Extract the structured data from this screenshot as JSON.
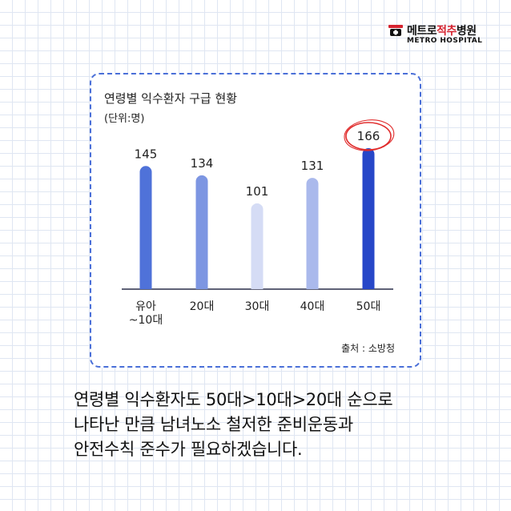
{
  "logo": {
    "name_part1": "메트로",
    "name_part2": "적추",
    "name_part3": "병원",
    "english": "METRO HOSPITAL"
  },
  "chart_data": {
    "type": "bar",
    "title": "연령별 익수환자 구급 현황",
    "unit": "(단위:명)",
    "categories": [
      "유아\n~10대",
      "20대",
      "30대",
      "40대",
      "50대"
    ],
    "values": [
      145,
      134,
      101,
      131,
      166
    ],
    "bar_colors": [
      "#4f72d9",
      "#7d96e2",
      "#d5dcf5",
      "#aab9ec",
      "#2747c8"
    ],
    "highlight_index": 4,
    "highlight_color": "#e02b2b",
    "ylim": [
      0,
      170
    ],
    "grid": false,
    "legend": "none",
    "source": "출처 : 소방청"
  },
  "caption": {
    "lines": [
      "연령별 익수환자도 50대>10대>20대 순으로",
      "나타난 만큼 남녀노소 철저한 준비운동과",
      "안전수칙 준수가 필요하겠습니다."
    ]
  }
}
